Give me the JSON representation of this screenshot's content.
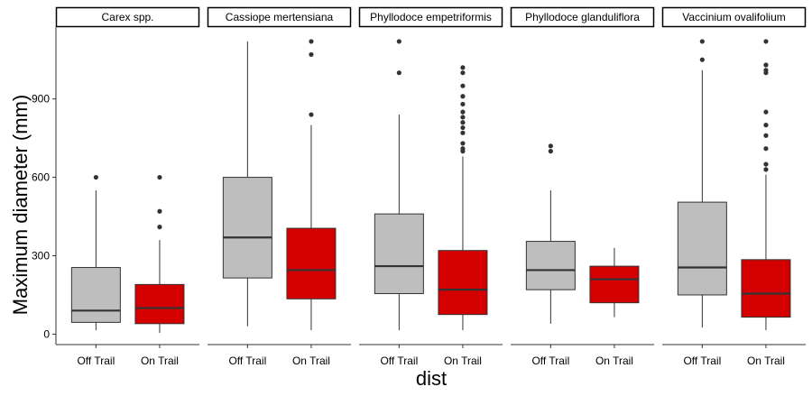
{
  "chart_data": {
    "type": "boxplot",
    "xlabel": "dist",
    "ylabel": "Maximum diameter (mm)",
    "ylim": [
      -40,
      1175
    ],
    "yticks": [
      0,
      300,
      600,
      900
    ],
    "ytick_labels": [
      "0",
      "300",
      "600",
      "900"
    ],
    "categories": [
      "Off Trail",
      "On Trail"
    ],
    "grid": false,
    "colors": {
      "Off Trail": "#BEBEBE",
      "On Trail": "#D40000"
    },
    "panels": [
      {
        "name": "Carex spp.",
        "boxes": [
          {
            "category": "Off Trail",
            "min": 15,
            "q1": 45,
            "median": 90,
            "q3": 255,
            "max": 550,
            "outliers": [
              600
            ]
          },
          {
            "category": "On Trail",
            "min": 5,
            "q1": 40,
            "median": 100,
            "q3": 190,
            "max": 360,
            "outliers": [
              410,
              470,
              600
            ]
          }
        ]
      },
      {
        "name": "Cassiope mertensiana",
        "boxes": [
          {
            "category": "Off Trail",
            "min": 30,
            "q1": 215,
            "median": 370,
            "q3": 600,
            "max": 1120,
            "outliers": []
          },
          {
            "category": "On Trail",
            "min": 15,
            "q1": 135,
            "median": 245,
            "q3": 405,
            "max": 800,
            "outliers": [
              840,
              1070,
              1120
            ]
          }
        ]
      },
      {
        "name": "Phyllodoce empetriformis",
        "boxes": [
          {
            "category": "Off Trail",
            "min": 15,
            "q1": 155,
            "median": 260,
            "q3": 460,
            "max": 840,
            "outliers": [
              1000,
              1120
            ]
          },
          {
            "category": "On Trail",
            "min": 15,
            "q1": 75,
            "median": 170,
            "q3": 320,
            "max": 680,
            "outliers": [
              700,
              710,
              730,
              770,
              790,
              810,
              830,
              850,
              880,
              910,
              950,
              1000,
              1020
            ]
          }
        ]
      },
      {
        "name": "Phyllodoce glanduliflora",
        "boxes": [
          {
            "category": "Off Trail",
            "min": 40,
            "q1": 170,
            "median": 245,
            "q3": 355,
            "max": 550,
            "outliers": [
              700,
              720
            ]
          },
          {
            "category": "On Trail",
            "min": 65,
            "q1": 120,
            "median": 210,
            "q3": 260,
            "max": 330,
            "outliers": []
          }
        ]
      },
      {
        "name": "Vaccinium ovalifolium",
        "boxes": [
          {
            "category": "Off Trail",
            "min": 25,
            "q1": 150,
            "median": 255,
            "q3": 505,
            "max": 1010,
            "outliers": [
              1050,
              1120
            ]
          },
          {
            "category": "On Trail",
            "min": 15,
            "q1": 65,
            "median": 155,
            "q3": 285,
            "max": 610,
            "outliers": [
              630,
              650,
              710,
              760,
              800,
              850,
              1000,
              1010,
              1030,
              1120
            ]
          }
        ]
      }
    ]
  }
}
